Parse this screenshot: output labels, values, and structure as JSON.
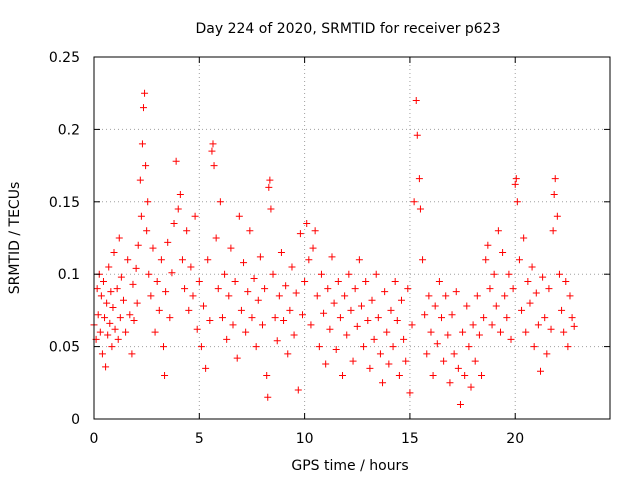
{
  "chart_data": {
    "type": "scatter",
    "title": "Day 224 of 2020, SRMTID for receiver p623",
    "xlabel": "GPS time / hours",
    "ylabel": "SRMTID / TECUs",
    "xlim": [
      0,
      24.5
    ],
    "ylim": [
      0,
      0.25
    ],
    "xticks": [
      0,
      5,
      10,
      15,
      20
    ],
    "xtick_labels": [
      "0",
      "5",
      "10",
      "15",
      "20"
    ],
    "yticks": [
      0,
      0.05,
      0.1,
      0.15,
      0.2,
      0.25
    ],
    "ytick_labels": [
      "0",
      "0.05",
      "0.1",
      "0.15",
      "0.2",
      "0.25"
    ],
    "grid": true,
    "marker": "+",
    "color": "#ff0000",
    "series": [
      {
        "name": "SRMTID",
        "points": [
          [
            0.0,
            0.065
          ],
          [
            0.1,
            0.055
          ],
          [
            0.15,
            0.09
          ],
          [
            0.2,
            0.072
          ],
          [
            0.25,
            0.1
          ],
          [
            0.3,
            0.06
          ],
          [
            0.35,
            0.085
          ],
          [
            0.4,
            0.045
          ],
          [
            0.45,
            0.095
          ],
          [
            0.5,
            0.07
          ],
          [
            0.55,
            0.036
          ],
          [
            0.6,
            0.08
          ],
          [
            0.65,
            0.058
          ],
          [
            0.7,
            0.105
          ],
          [
            0.75,
            0.066
          ],
          [
            0.8,
            0.088
          ],
          [
            0.85,
            0.05
          ],
          [
            0.9,
            0.077
          ],
          [
            0.95,
            0.115
          ],
          [
            1.0,
            0.062
          ],
          [
            1.1,
            0.09
          ],
          [
            1.15,
            0.055
          ],
          [
            1.2,
            0.125
          ],
          [
            1.25,
            0.07
          ],
          [
            1.3,
            0.098
          ],
          [
            1.4,
            0.082
          ],
          [
            1.5,
            0.06
          ],
          [
            1.6,
            0.11
          ],
          [
            1.7,
            0.072
          ],
          [
            1.8,
            0.045
          ],
          [
            1.85,
            0.093
          ],
          [
            1.9,
            0.068
          ],
          [
            2.0,
            0.104
          ],
          [
            2.05,
            0.08
          ],
          [
            2.1,
            0.12
          ],
          [
            2.2,
            0.165
          ],
          [
            2.25,
            0.14
          ],
          [
            2.3,
            0.19
          ],
          [
            2.35,
            0.215
          ],
          [
            2.4,
            0.225
          ],
          [
            2.45,
            0.175
          ],
          [
            2.5,
            0.13
          ],
          [
            2.55,
            0.15
          ],
          [
            2.6,
            0.1
          ],
          [
            2.7,
            0.085
          ],
          [
            2.8,
            0.118
          ],
          [
            2.9,
            0.06
          ],
          [
            3.0,
            0.095
          ],
          [
            3.1,
            0.075
          ],
          [
            3.2,
            0.11
          ],
          [
            3.3,
            0.05
          ],
          [
            3.35,
            0.03
          ],
          [
            3.4,
            0.088
          ],
          [
            3.5,
            0.122
          ],
          [
            3.6,
            0.07
          ],
          [
            3.7,
            0.101
          ],
          [
            3.8,
            0.135
          ],
          [
            3.9,
            0.178
          ],
          [
            4.0,
            0.145
          ],
          [
            4.1,
            0.155
          ],
          [
            4.2,
            0.11
          ],
          [
            4.3,
            0.09
          ],
          [
            4.4,
            0.13
          ],
          [
            4.5,
            0.075
          ],
          [
            4.6,
            0.105
          ],
          [
            4.7,
            0.085
          ],
          [
            4.8,
            0.14
          ],
          [
            4.9,
            0.062
          ],
          [
            5.0,
            0.095
          ],
          [
            5.1,
            0.05
          ],
          [
            5.2,
            0.078
          ],
          [
            5.3,
            0.035
          ],
          [
            5.4,
            0.11
          ],
          [
            5.5,
            0.068
          ],
          [
            5.6,
            0.185
          ],
          [
            5.65,
            0.19
          ],
          [
            5.7,
            0.175
          ],
          [
            5.8,
            0.125
          ],
          [
            5.9,
            0.09
          ],
          [
            6.0,
            0.15
          ],
          [
            6.1,
            0.07
          ],
          [
            6.2,
            0.1
          ],
          [
            6.3,
            0.055
          ],
          [
            6.4,
            0.085
          ],
          [
            6.5,
            0.118
          ],
          [
            6.6,
            0.065
          ],
          [
            6.7,
            0.095
          ],
          [
            6.8,
            0.042
          ],
          [
            6.9,
            0.14
          ],
          [
            7.0,
            0.075
          ],
          [
            7.1,
            0.108
          ],
          [
            7.2,
            0.06
          ],
          [
            7.3,
            0.088
          ],
          [
            7.4,
            0.13
          ],
          [
            7.5,
            0.07
          ],
          [
            7.6,
            0.097
          ],
          [
            7.7,
            0.05
          ],
          [
            7.8,
            0.082
          ],
          [
            7.9,
            0.112
          ],
          [
            8.0,
            0.065
          ],
          [
            8.1,
            0.09
          ],
          [
            8.2,
            0.03
          ],
          [
            8.25,
            0.015
          ],
          [
            8.3,
            0.16
          ],
          [
            8.35,
            0.165
          ],
          [
            8.4,
            0.145
          ],
          [
            8.5,
            0.1
          ],
          [
            8.6,
            0.07
          ],
          [
            8.7,
            0.054
          ],
          [
            8.8,
            0.085
          ],
          [
            8.9,
            0.115
          ],
          [
            9.0,
            0.068
          ],
          [
            9.1,
            0.092
          ],
          [
            9.2,
            0.045
          ],
          [
            9.3,
            0.075
          ],
          [
            9.4,
            0.105
          ],
          [
            9.5,
            0.058
          ],
          [
            9.6,
            0.087
          ],
          [
            9.7,
            0.02
          ],
          [
            9.8,
            0.128
          ],
          [
            9.9,
            0.072
          ],
          [
            10.0,
            0.095
          ],
          [
            10.1,
            0.135
          ],
          [
            10.2,
            0.11
          ],
          [
            10.3,
            0.065
          ],
          [
            10.4,
            0.118
          ],
          [
            10.5,
            0.13
          ],
          [
            10.6,
            0.085
          ],
          [
            10.7,
            0.05
          ],
          [
            10.8,
            0.1
          ],
          [
            10.9,
            0.073
          ],
          [
            11.0,
            0.038
          ],
          [
            11.1,
            0.09
          ],
          [
            11.2,
            0.062
          ],
          [
            11.3,
            0.112
          ],
          [
            11.4,
            0.08
          ],
          [
            11.5,
            0.048
          ],
          [
            11.6,
            0.095
          ],
          [
            11.7,
            0.07
          ],
          [
            11.8,
            0.03
          ],
          [
            11.9,
            0.085
          ],
          [
            12.0,
            0.058
          ],
          [
            12.1,
            0.1
          ],
          [
            12.2,
            0.075
          ],
          [
            12.3,
            0.04
          ],
          [
            12.4,
            0.09
          ],
          [
            12.5,
            0.064
          ],
          [
            12.6,
            0.11
          ],
          [
            12.7,
            0.078
          ],
          [
            12.8,
            0.05
          ],
          [
            12.9,
            0.095
          ],
          [
            13.0,
            0.068
          ],
          [
            13.1,
            0.035
          ],
          [
            13.2,
            0.082
          ],
          [
            13.3,
            0.055
          ],
          [
            13.4,
            0.1
          ],
          [
            13.5,
            0.07
          ],
          [
            13.6,
            0.045
          ],
          [
            13.7,
            0.025
          ],
          [
            13.8,
            0.088
          ],
          [
            13.9,
            0.06
          ],
          [
            14.0,
            0.038
          ],
          [
            14.1,
            0.075
          ],
          [
            14.2,
            0.05
          ],
          [
            14.3,
            0.095
          ],
          [
            14.4,
            0.068
          ],
          [
            14.5,
            0.03
          ],
          [
            14.6,
            0.082
          ],
          [
            14.7,
            0.055
          ],
          [
            14.8,
            0.04
          ],
          [
            14.9,
            0.09
          ],
          [
            15.0,
            0.018
          ],
          [
            15.1,
            0.065
          ],
          [
            15.2,
            0.15
          ],
          [
            15.3,
            0.22
          ],
          [
            15.35,
            0.196
          ],
          [
            15.45,
            0.166
          ],
          [
            15.5,
            0.145
          ],
          [
            15.6,
            0.11
          ],
          [
            15.7,
            0.072
          ],
          [
            15.8,
            0.045
          ],
          [
            15.9,
            0.085
          ],
          [
            16.0,
            0.06
          ],
          [
            16.1,
            0.03
          ],
          [
            16.2,
            0.078
          ],
          [
            16.3,
            0.052
          ],
          [
            16.4,
            0.095
          ],
          [
            16.5,
            0.07
          ],
          [
            16.6,
            0.04
          ],
          [
            16.7,
            0.085
          ],
          [
            16.8,
            0.058
          ],
          [
            16.9,
            0.025
          ],
          [
            17.0,
            0.072
          ],
          [
            17.1,
            0.045
          ],
          [
            17.2,
            0.088
          ],
          [
            17.3,
            0.035
          ],
          [
            17.4,
            0.01
          ],
          [
            17.5,
            0.06
          ],
          [
            17.6,
            0.03
          ],
          [
            17.7,
            0.078
          ],
          [
            17.8,
            0.05
          ],
          [
            17.9,
            0.022
          ],
          [
            18.0,
            0.065
          ],
          [
            18.1,
            0.04
          ],
          [
            18.2,
            0.085
          ],
          [
            18.3,
            0.058
          ],
          [
            18.4,
            0.03
          ],
          [
            18.5,
            0.07
          ],
          [
            18.6,
            0.11
          ],
          [
            18.7,
            0.12
          ],
          [
            18.8,
            0.09
          ],
          [
            18.9,
            0.065
          ],
          [
            19.0,
            0.1
          ],
          [
            19.1,
            0.078
          ],
          [
            19.2,
            0.13
          ],
          [
            19.3,
            0.06
          ],
          [
            19.4,
            0.115
          ],
          [
            19.5,
            0.085
          ],
          [
            19.6,
            0.07
          ],
          [
            19.7,
            0.1
          ],
          [
            19.8,
            0.055
          ],
          [
            19.9,
            0.09
          ],
          [
            20.0,
            0.162
          ],
          [
            20.05,
            0.166
          ],
          [
            20.1,
            0.15
          ],
          [
            20.2,
            0.11
          ],
          [
            20.3,
            0.075
          ],
          [
            20.4,
            0.125
          ],
          [
            20.5,
            0.06
          ],
          [
            20.6,
            0.095
          ],
          [
            20.7,
            0.08
          ],
          [
            20.8,
            0.105
          ],
          [
            20.9,
            0.05
          ],
          [
            21.0,
            0.087
          ],
          [
            21.1,
            0.065
          ],
          [
            21.2,
            0.033
          ],
          [
            21.3,
            0.098
          ],
          [
            21.4,
            0.07
          ],
          [
            21.5,
            0.045
          ],
          [
            21.6,
            0.09
          ],
          [
            21.7,
            0.062
          ],
          [
            21.8,
            0.13
          ],
          [
            21.85,
            0.155
          ],
          [
            21.9,
            0.166
          ],
          [
            22.0,
            0.14
          ],
          [
            22.1,
            0.1
          ],
          [
            22.2,
            0.075
          ],
          [
            22.3,
            0.06
          ],
          [
            22.4,
            0.095
          ],
          [
            22.5,
            0.05
          ],
          [
            22.6,
            0.085
          ],
          [
            22.7,
            0.07
          ],
          [
            22.8,
            0.064
          ]
        ]
      }
    ]
  }
}
